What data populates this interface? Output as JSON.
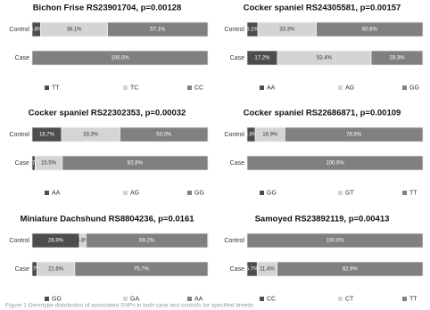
{
  "chart_data": [
    {
      "type": "bar",
      "orientation": "horizontal",
      "stacked": true,
      "title": "Bichon Frise  RS23901704, p=0.00128",
      "categories": [
        "Control",
        "Case"
      ],
      "xlim": [
        0,
        100
      ],
      "series": [
        {
          "name": "TT",
          "color": "#4d4d4d",
          "values": [
            4.8,
            0
          ],
          "value_labels": [
            "4.8%",
            null
          ]
        },
        {
          "name": "TC",
          "color": "#d4d4d4",
          "values": [
            38.1,
            0
          ],
          "value_labels": [
            "38.1%",
            null
          ]
        },
        {
          "name": "CC",
          "color": "#808080",
          "values": [
            57.1,
            100.0
          ],
          "value_labels": [
            "57.1%",
            "100.0%"
          ]
        }
      ]
    },
    {
      "type": "bar",
      "orientation": "horizontal",
      "stacked": true,
      "title": "Cocker spaniel  RS24305581, p=0.00157",
      "categories": [
        "Control",
        "Case"
      ],
      "xlim": [
        0,
        100
      ],
      "series": [
        {
          "name": "AA",
          "color": "#4d4d4d",
          "values": [
            6.1,
            17.2
          ],
          "value_labels": [
            "6.1%",
            "17.2%"
          ]
        },
        {
          "name": "AG",
          "color": "#d4d4d4",
          "values": [
            33.3,
            53.4
          ],
          "value_labels": [
            "33.3%",
            "53.4%"
          ]
        },
        {
          "name": "GG",
          "color": "#808080",
          "values": [
            60.6,
            29.3
          ],
          "value_labels": [
            "60.6%",
            "29.3%"
          ]
        }
      ]
    },
    {
      "type": "bar",
      "orientation": "horizontal",
      "stacked": true,
      "title": "Cocker spaniel  RS22302353, p=0.00032",
      "categories": [
        "Control",
        "Case"
      ],
      "xlim": [
        0,
        100
      ],
      "series": [
        {
          "name": "AA",
          "color": "#4d4d4d",
          "values": [
            16.7,
            1.7
          ],
          "value_labels": [
            "16.7%",
            "1.7%"
          ]
        },
        {
          "name": "AG",
          "color": "#d4d4d4",
          "values": [
            33.3,
            15.5
          ],
          "value_labels": [
            "33.3%",
            "15.5%"
          ]
        },
        {
          "name": "GG",
          "color": "#808080",
          "values": [
            50.0,
            82.8
          ],
          "value_labels": [
            "50.0%",
            "82.8%"
          ]
        }
      ]
    },
    {
      "type": "bar",
      "orientation": "horizontal",
      "stacked": true,
      "title": "Cocker spaniel  RS22686871, p=0.00109",
      "categories": [
        "Control",
        "Case"
      ],
      "xlim": [
        0,
        100
      ],
      "series": [
        {
          "name": "GG",
          "color": "#4d4d4d",
          "values": [
            4.6,
            0
          ],
          "value_labels": [
            "4.6%",
            null
          ]
        },
        {
          "name": "GT",
          "color": "#d4d4d4",
          "values": [
            16.9,
            0
          ],
          "value_labels": [
            "16.9%",
            null
          ]
        },
        {
          "name": "TT",
          "color": "#808080",
          "values": [
            78.5,
            100.0
          ],
          "value_labels": [
            "78.5%",
            "100.0%"
          ]
        }
      ]
    },
    {
      "type": "bar",
      "orientation": "horizontal",
      "stacked": true,
      "title": "Miniature Dachshund  RS8804236, p=0.0161",
      "categories": [
        "Control",
        "Case"
      ],
      "xlim": [
        0,
        100
      ],
      "series": [
        {
          "name": "GG",
          "color": "#4d4d4d",
          "values": [
            26.9,
            2.7
          ],
          "value_labels": [
            "26.9%",
            "2.7%"
          ]
        },
        {
          "name": "GA",
          "color": "#d4d4d4",
          "values": [
            3.8,
            21.6
          ],
          "value_labels": [
            "3.8%",
            "21.6%"
          ]
        },
        {
          "name": "AA",
          "color": "#808080",
          "values": [
            69.2,
            75.7
          ],
          "value_labels": [
            "69.2%",
            "75.7%"
          ]
        }
      ]
    },
    {
      "type": "bar",
      "orientation": "horizontal",
      "stacked": true,
      "title": "Samoyed  RS23892119, p=0.00413",
      "categories": [
        "Control",
        "Case"
      ],
      "xlim": [
        0,
        100
      ],
      "series": [
        {
          "name": "CC",
          "color": "#4d4d4d",
          "values": [
            0,
            5.7
          ],
          "value_labels": [
            null,
            "5.7%"
          ]
        },
        {
          "name": "CT",
          "color": "#d4d4d4",
          "values": [
            0,
            11.4
          ],
          "value_labels": [
            null,
            "11.4%"
          ]
        },
        {
          "name": "TT",
          "color": "#808080",
          "values": [
            100.0,
            82.9
          ],
          "value_labels": [
            "100.0%",
            "82.9%"
          ]
        }
      ]
    }
  ],
  "caption": "Figure 1 Genotype distribution of associated SNPs in both case and controls for specified breeds"
}
